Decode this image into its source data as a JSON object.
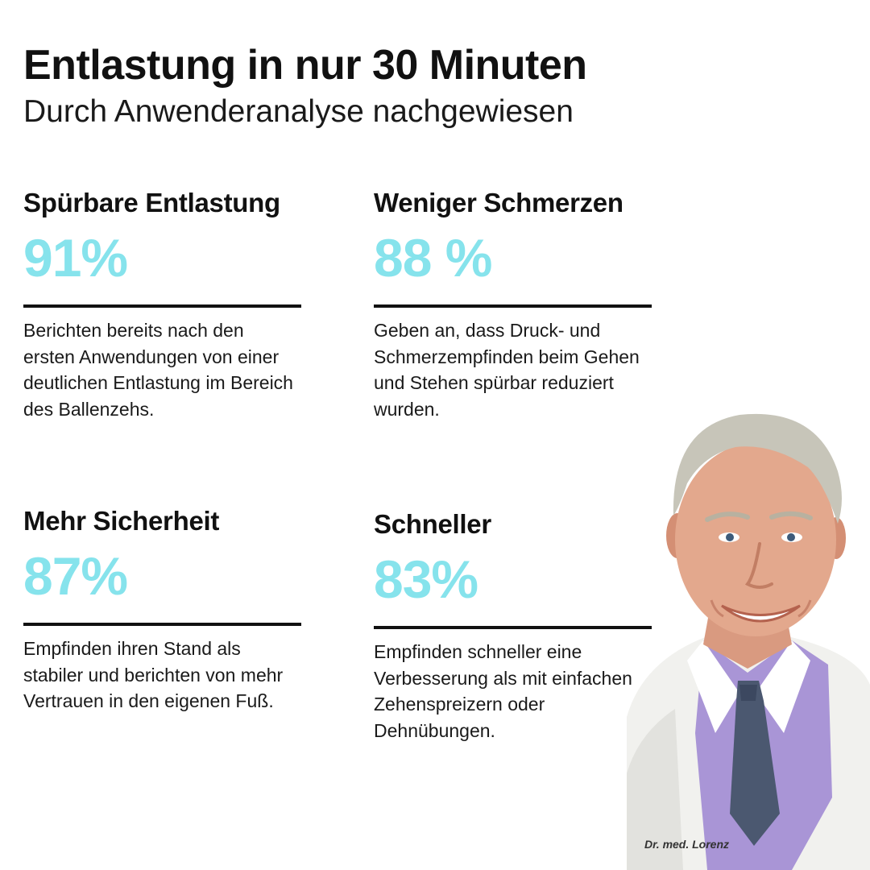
{
  "header": {
    "title": "Entlastung in nur 30 Minuten",
    "subtitle": "Durch Anwenderanalyse nachgewiesen"
  },
  "stats": [
    {
      "heading": "Spürbare Entlastung",
      "value": "91%",
      "description": "Berichten bereits nach den ersten Anwendungen von einer deutlichen Entlastung im Bereich des Ballenzehs."
    },
    {
      "heading": "Weniger Schmerzen",
      "value": "88 %",
      "description": "Geben an, dass Druck- und Schmerzempfinden beim Gehen und Stehen spürbar reduziert wurden."
    },
    {
      "heading": "Mehr Sicherheit",
      "value": "87%",
      "description": "Empfinden ihren Stand als stabiler und berichten von mehr Vertrauen in den eigenen Fuß."
    },
    {
      "heading": "Schneller",
      "value": "83%",
      "description": "Empfinden schneller eine Verbesserung als mit einfachen Zehenspreizern oder Dehnübungen."
    }
  ],
  "doctor": {
    "caption": "Dr. med. Lorenz"
  },
  "colors": {
    "accent": "#86e3ec",
    "text": "#111111",
    "background": "#ffffff"
  }
}
